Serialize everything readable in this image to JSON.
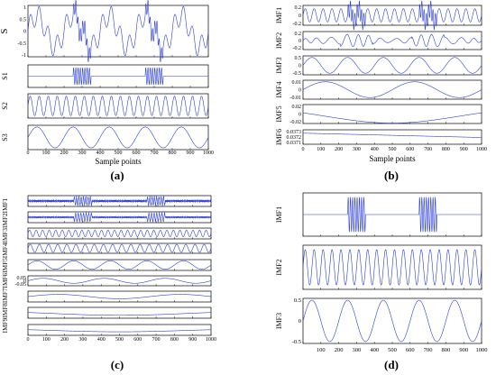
{
  "colors": {
    "signal": "#2b3fd6",
    "axes": "#000000",
    "background": "#ffffff"
  },
  "chart_data": [
    {
      "id": "a",
      "type": "line",
      "caption": "(a)",
      "xlabel": "Sample points",
      "xlim": [
        0,
        1000
      ],
      "xticks": [
        "0",
        "100",
        "200",
        "300",
        "400",
        "500",
        "600",
        "700",
        "800",
        "900",
        "1000"
      ],
      "bursts": [
        [
          250,
          350
        ],
        [
          650,
          750
        ]
      ],
      "subplots": [
        {
          "label": "S",
          "ylim": [
            -1,
            1
          ],
          "yticks": [
            "1",
            "0.5",
            "0",
            "-0.5",
            "-1"
          ],
          "components": [
            {
              "kind": "sine",
              "amp": 0.6,
              "cycles": 5
            },
            {
              "kind": "sine",
              "amp": 0.4,
              "cycles": 20
            },
            {
              "kind": "burst",
              "amp": 0.3,
              "cycles": 80
            }
          ]
        },
        {
          "label": "S1",
          "ylim": [
            -0.4,
            0.4
          ],
          "yticks": [],
          "components": [
            {
              "kind": "burst",
              "amp": 0.3,
              "cycles": 80
            }
          ]
        },
        {
          "label": "S2",
          "ylim": [
            -0.5,
            0.5
          ],
          "yticks": [],
          "components": [
            {
              "kind": "sine",
              "amp": 0.4,
              "cycles": 20
            }
          ]
        },
        {
          "label": "S3",
          "ylim": [
            -0.7,
            0.7
          ],
          "yticks": [],
          "components": [
            {
              "kind": "sine",
              "amp": 0.6,
              "cycles": 5
            }
          ]
        }
      ]
    },
    {
      "id": "b",
      "type": "line",
      "caption": "(b)",
      "xlabel": "Sample points",
      "xlim": [
        0,
        1000
      ],
      "xticks": [
        "0",
        "100",
        "200",
        "300",
        "400",
        "500",
        "600",
        "700",
        "800",
        "900",
        "1000"
      ],
      "bursts": [
        [
          250,
          350
        ],
        [
          650,
          750
        ]
      ],
      "subplots": [
        {
          "label": "IMF1",
          "ylim": [
            -0.3,
            0.3
          ],
          "yticks": [
            "0.2",
            "0",
            "-0.2"
          ],
          "components": [
            {
              "kind": "sine",
              "amp": 0.2,
              "cycles": 20
            },
            {
              "kind": "burst",
              "amp": 0.25,
              "cycles": 80
            }
          ]
        },
        {
          "label": "IMF2",
          "ylim": [
            -0.3,
            0.3
          ],
          "yticks": [
            "0.2",
            "0",
            "-0.2"
          ],
          "components": [
            {
              "kind": "wavy",
              "amp": 0.12,
              "cycles": 14
            }
          ]
        },
        {
          "label": "IMF3",
          "ylim": [
            -0.6,
            0.6
          ],
          "yticks": [
            "0.5",
            "0",
            "-0.5"
          ],
          "components": [
            {
              "kind": "sine",
              "amp": 0.5,
              "cycles": 5
            }
          ]
        },
        {
          "label": "IMF4",
          "ylim": [
            -0.012,
            0.012
          ],
          "yticks": [
            "0.01",
            "0",
            "-0.01"
          ],
          "components": [
            {
              "kind": "sine",
              "amp": 0.01,
              "cycles": 2
            }
          ]
        },
        {
          "label": "IMF5",
          "ylim": [
            -0.03,
            0.03
          ],
          "yticks": [
            "0.02",
            "0",
            "-0.02"
          ],
          "components": [
            {
              "kind": "arc",
              "amp": 0.025
            }
          ]
        },
        {
          "label": "IMF6",
          "ylim": [
            0.03705,
            0.03735
          ],
          "yticks": [
            "0.0373",
            "0.0372",
            "0.0371"
          ],
          "components": [
            {
              "kind": "ramp",
              "from": 0.03728,
              "to": 0.03719
            }
          ]
        }
      ]
    },
    {
      "id": "c",
      "type": "line",
      "caption": "(c)",
      "xlabel": "",
      "xlim": [
        0,
        1000
      ],
      "xticks": [
        "0",
        "100",
        "200",
        "300",
        "400",
        "500",
        "600",
        "700",
        "800",
        "900",
        "1000"
      ],
      "bursts": [
        [
          250,
          350
        ],
        [
          650,
          750
        ]
      ],
      "ylabel_block": "IMF9IMF8IMF7IMF6IMF5IMF4IMF3IMF2IMF1",
      "subplots": [
        {
          "label": "IMF1",
          "ylim": [
            -0.4,
            0.4
          ],
          "yticks": [],
          "components": [
            {
              "kind": "noise",
              "amp": 0.08
            },
            {
              "kind": "burst",
              "amp": 0.3,
              "cycles": 80
            }
          ]
        },
        {
          "label": "IMF2",
          "ylim": [
            -0.4,
            0.4
          ],
          "yticks": [],
          "components": [
            {
              "kind": "noise",
              "amp": 0.06
            },
            {
              "kind": "burst",
              "amp": 0.3,
              "cycles": 70
            }
          ]
        },
        {
          "label": "IMF3",
          "ylim": [
            -0.5,
            0.5
          ],
          "yticks": [],
          "components": [
            {
              "kind": "sine",
              "amp": 0.3,
              "cycles": 28
            }
          ]
        },
        {
          "label": "IMF4",
          "ylim": [
            -0.5,
            0.5
          ],
          "yticks": [],
          "components": [
            {
              "kind": "sine",
              "amp": 0.4,
              "cycles": 20
            }
          ]
        },
        {
          "label": "IMF5",
          "ylim": [
            -0.7,
            0.7
          ],
          "yticks": [],
          "components": [
            {
              "kind": "sine",
              "amp": 0.55,
              "cycles": 5
            }
          ]
        },
        {
          "label": "IMF6",
          "ylim": [
            -0.1,
            0.1
          ],
          "yticks": [
            "0.05",
            "0",
            "-0.05"
          ],
          "components": [
            {
              "kind": "sine",
              "amp": 0.05,
              "cycles": 3
            }
          ]
        },
        {
          "label": "IMF7",
          "ylim": [
            -0.1,
            0.1
          ],
          "yticks": [],
          "components": [
            {
              "kind": "sine",
              "amp": 0.04,
              "cycles": 1.5
            }
          ]
        },
        {
          "label": "IMF8",
          "ylim": [
            -0.1,
            0.1
          ],
          "yticks": [],
          "components": [
            {
              "kind": "arc",
              "amp": 0.04
            }
          ]
        },
        {
          "label": "IMF9",
          "ylim": [
            -0.1,
            0.1
          ],
          "yticks": [],
          "components": [
            {
              "kind": "arc",
              "amp": 0.03
            }
          ]
        }
      ]
    },
    {
      "id": "d",
      "type": "line",
      "caption": "(d)",
      "xlabel": "",
      "xlim": [
        0,
        1000
      ],
      "xticks": [
        "100",
        "200",
        "300",
        "400",
        "500",
        "600",
        "700",
        "800",
        "900",
        "1000"
      ],
      "bursts": [
        [
          250,
          350
        ],
        [
          650,
          750
        ]
      ],
      "subplots": [
        {
          "label": "IMF1",
          "ylim": [
            -0.4,
            0.4
          ],
          "yticks": [],
          "components": [
            {
              "kind": "burst",
              "amp": 0.32,
              "cycles": 80
            }
          ]
        },
        {
          "label": "IMF2",
          "ylim": [
            -0.5,
            0.5
          ],
          "yticks": [],
          "components": [
            {
              "kind": "sine",
              "amp": 0.4,
              "cycles": 20
            }
          ]
        },
        {
          "label": "IMF3",
          "ylim": [
            -0.6,
            0.6
          ],
          "yticks": [
            "0.5",
            "0",
            "-0.5"
          ],
          "components": [
            {
              "kind": "sine",
              "amp": 0.55,
              "cycles": 5
            }
          ]
        }
      ]
    }
  ]
}
